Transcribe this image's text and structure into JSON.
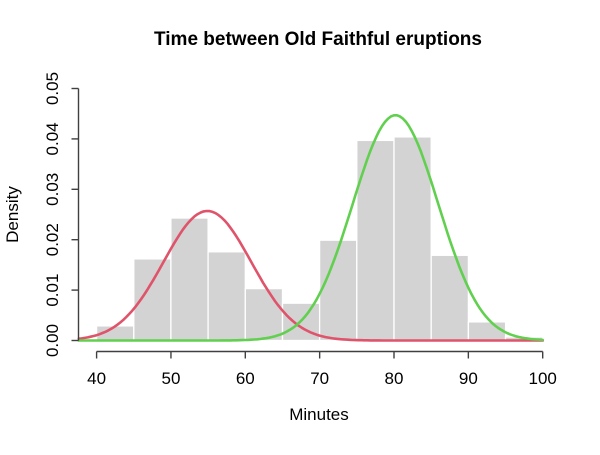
{
  "chart_data": {
    "type": "bar",
    "subtype": "histogram_with_density_curves",
    "title": "Time between Old Faithful eruptions",
    "xlabel": "Minutes",
    "ylabel": "Density",
    "xlim": [
      40,
      100
    ],
    "ylim": [
      0,
      0.05
    ],
    "x_ticks": [
      40,
      50,
      60,
      70,
      80,
      90,
      100
    ],
    "y_ticks": [
      "0.00",
      "0.01",
      "0.02",
      "0.03",
      "0.04",
      "0.05"
    ],
    "grid": false,
    "legend": false,
    "histogram": {
      "bin_width": 5,
      "bin_edges": [
        40,
        45,
        50,
        55,
        60,
        65,
        70,
        75,
        80,
        85,
        90,
        95,
        100
      ],
      "densities": [
        0.0029,
        0.0162,
        0.0243,
        0.0176,
        0.0103,
        0.0074,
        0.0199,
        0.0397,
        0.0404,
        0.0169,
        0.0037,
        0.0007
      ],
      "fill_color": "#d3d3d3",
      "border_color": "#ffffff"
    },
    "curves": [
      {
        "name": "component-1-red",
        "color": "#df536b",
        "mean": 54.9,
        "sd": 5.9,
        "peak_density": 0.0257
      },
      {
        "name": "component-2-green",
        "color": "#61d04f",
        "mean": 80.2,
        "sd": 5.75,
        "peak_density": 0.0447
      }
    ]
  },
  "colors": {
    "background": "#ffffff",
    "axis_line": "#404040",
    "text": "#000000"
  }
}
